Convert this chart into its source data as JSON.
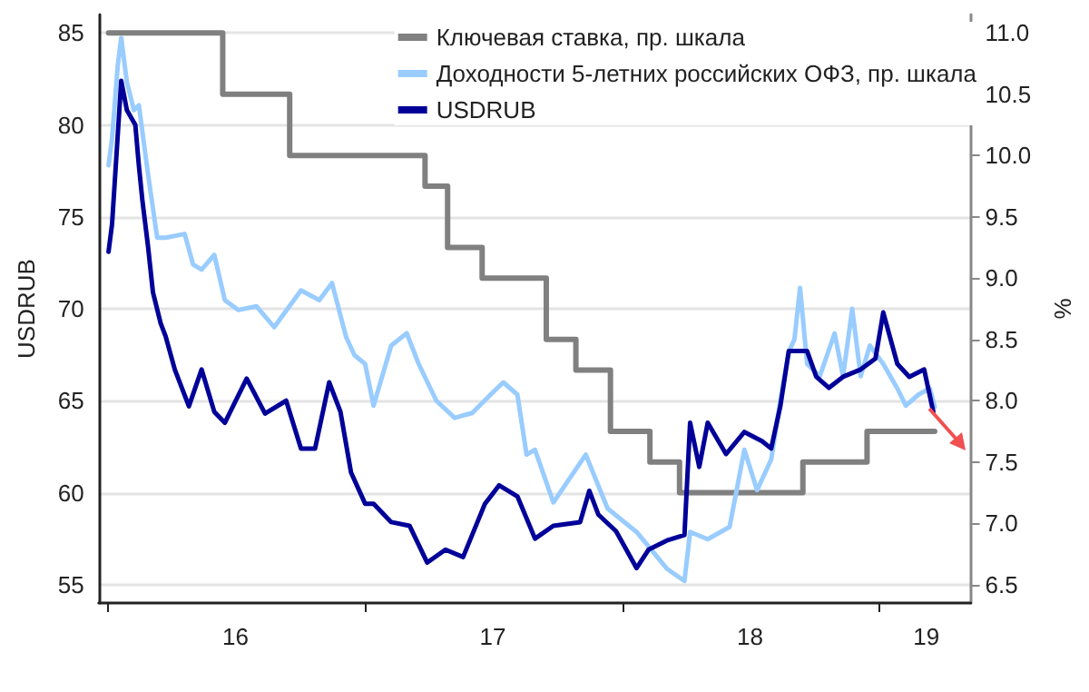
{
  "chart_data": {
    "type": "line",
    "ylabel": "USDRUB",
    "y2label": "%",
    "xlim": [
      "2015-12-20",
      "2019-05-10"
    ],
    "xticks": [
      {
        "value": "2016-01-01",
        "label": null
      },
      {
        "value": "2016-07-01",
        "label": "16"
      },
      {
        "value": "2017-01-01",
        "label": null
      },
      {
        "value": "2017-07-01",
        "label": "17"
      },
      {
        "value": "2018-01-01",
        "label": null
      },
      {
        "value": "2018-07-01",
        "label": "18"
      },
      {
        "value": "2019-01-01",
        "label": null
      },
      {
        "value": "2019-03-08",
        "label": "19"
      }
    ],
    "ylim": [
      54,
      86
    ],
    "yticks": [
      55,
      60,
      65,
      70,
      75,
      80,
      85
    ],
    "y2lim": [
      6.35,
      11.15
    ],
    "y2ticks": [
      {
        "value": 6.5,
        "label": "6.5"
      },
      {
        "value": 7,
        "label": "7.0"
      },
      {
        "value": 7.5,
        "label": "7.5"
      },
      {
        "value": 8,
        "label": "8.0"
      },
      {
        "value": 8.5,
        "label": "8.5"
      },
      {
        "value": 9,
        "label": "9.0"
      },
      {
        "value": 9.5,
        "label": "9.5"
      },
      {
        "value": 10,
        "label": "10.0"
      },
      {
        "value": 10.5,
        "label": "10.5"
      },
      {
        "value": 11,
        "label": "11.0"
      }
    ],
    "grid": "y",
    "legend": "top right",
    "marker": "none",
    "line_style": "solid",
    "series": [
      {
        "type": "step",
        "name": "Ключевая ставка, пр. шкала",
        "color": "#808080",
        "axis": "y2",
        "x": [
          "2016-01-03",
          "2016-06-13",
          "2016-09-16",
          "2017-03-27",
          "2017-04-28",
          "2017-06-16",
          "2017-09-15",
          "2017-10-27",
          "2017-12-15",
          "2018-02-09",
          "2018-03-23",
          "2018-09-14",
          "2018-12-14",
          "2019-03-20"
        ],
        "values": [
          11,
          10.5,
          10,
          9.75,
          9.25,
          9,
          8.5,
          8.25,
          7.75,
          7.5,
          7.25,
          7.5,
          7.75,
          7.75
        ]
      },
      {
        "name": "Доходности 5-летних российских ОФЗ, пр. шкала",
        "color": "#99ccff",
        "axis": "y2",
        "x": [
          "2016-01-03",
          "2016-01-08",
          "2016-01-16",
          "2016-01-21",
          "2016-01-29",
          "2016-02-08",
          "2016-02-15",
          "2016-02-28",
          "2016-03-12",
          "2016-03-24",
          "2016-04-20",
          "2016-05-02",
          "2016-05-14",
          "2016-06-01",
          "2016-06-16",
          "2016-07-05",
          "2016-07-31",
          "2016-08-25",
          "2016-10-02",
          "2016-10-28",
          "2016-11-15",
          "2016-12-05",
          "2016-12-17",
          "2017-01-01",
          "2017-01-13",
          "2017-02-07",
          "2017-03-01",
          "2017-03-18",
          "2017-04-12",
          "2017-05-08",
          "2017-06-02",
          "2017-06-28",
          "2017-07-16",
          "2017-08-05",
          "2017-08-18",
          "2017-08-30",
          "2017-09-25",
          "2017-11-10",
          "2017-12-11",
          "2018-01-21",
          "2018-03-05",
          "2018-03-30",
          "2018-04-07",
          "2018-05-02",
          "2018-06-02",
          "2018-06-23",
          "2018-07-11",
          "2018-07-31",
          "2018-08-13",
          "2018-08-25",
          "2018-09-02",
          "2018-09-10",
          "2018-09-20",
          "2018-10-08",
          "2018-10-29",
          "2018-11-10",
          "2018-11-23",
          "2018-12-05",
          "2018-12-18",
          "2019-01-06",
          "2019-01-26",
          "2019-02-07",
          "2019-02-25",
          "2019-03-13",
          "2019-03-20"
        ],
        "values": [
          9.92,
          10.14,
          10.73,
          10.96,
          10.6,
          10.37,
          10.41,
          9.85,
          9.33,
          9.33,
          9.36,
          9.11,
          9.07,
          9.19,
          8.82,
          8.74,
          8.77,
          8.6,
          8.9,
          8.82,
          8.96,
          8.52,
          8.37,
          8.3,
          7.96,
          8.45,
          8.55,
          8.3,
          8.0,
          7.86,
          7.9,
          8.05,
          8.15,
          8.05,
          7.56,
          7.6,
          7.17,
          7.56,
          7.12,
          6.93,
          6.63,
          6.53,
          6.93,
          6.87,
          6.97,
          7.6,
          7.27,
          7.52,
          8.0,
          8.4,
          8.5,
          8.92,
          8.3,
          8.2,
          8.55,
          8.2,
          8.75,
          8.2,
          8.45,
          8.3,
          8.1,
          7.96,
          8.05,
          8.1,
          7.95
        ]
      },
      {
        "name": "USDRUB",
        "color": "#000099",
        "axis": "y",
        "x": [
          "2016-01-03",
          "2016-01-08",
          "2016-01-21",
          "2016-01-29",
          "2016-02-10",
          "2016-02-15",
          "2016-02-20",
          "2016-02-28",
          "2016-03-06",
          "2016-03-17",
          "2016-03-24",
          "2016-04-06",
          "2016-04-26",
          "2016-05-14",
          "2016-06-01",
          "2016-06-16",
          "2016-07-17",
          "2016-08-12",
          "2016-09-11",
          "2016-10-02",
          "2016-10-22",
          "2016-11-11",
          "2016-11-27",
          "2016-12-12",
          "2017-01-01",
          "2017-01-13",
          "2017-02-07",
          "2017-03-05",
          "2017-03-30",
          "2017-04-25",
          "2017-05-20",
          "2017-06-20",
          "2017-07-10",
          "2017-08-05",
          "2017-08-30",
          "2017-09-25",
          "2017-11-02",
          "2017-11-15",
          "2017-11-28",
          "2017-12-23",
          "2018-01-21",
          "2018-02-07",
          "2018-03-05",
          "2018-03-30",
          "2018-04-07",
          "2018-04-20",
          "2018-05-02",
          "2018-05-28",
          "2018-06-23",
          "2018-07-18",
          "2018-07-31",
          "2018-08-13",
          "2018-08-25",
          "2018-09-20",
          "2018-10-03",
          "2018-10-21",
          "2018-11-10",
          "2018-12-05",
          "2018-12-26",
          "2019-01-06",
          "2019-01-26",
          "2019-02-12",
          "2019-03-05",
          "2019-03-18"
        ],
        "values": [
          73.1,
          74.6,
          82.4,
          80.8,
          80,
          77.8,
          75.9,
          73.4,
          70.9,
          69.2,
          68.5,
          66.7,
          64.7,
          66.7,
          64.4,
          63.8,
          66.2,
          64.3,
          65.0,
          62.4,
          62.4,
          66.0,
          64.4,
          61.1,
          59.4,
          59.4,
          58.4,
          58.2,
          56.2,
          56.9,
          56.5,
          59.4,
          60.4,
          59.8,
          57.5,
          58.2,
          58.4,
          60.1,
          58.8,
          57.9,
          55.9,
          56.9,
          57.4,
          57.7,
          63.8,
          61.4,
          63.8,
          62.1,
          63.3,
          62.8,
          62.4,
          64.7,
          67.7,
          67.7,
          66.3,
          65.7,
          66.3,
          66.7,
          67.3,
          69.8,
          67.0,
          66.3,
          66.7,
          64.4
        ]
      }
    ]
  }
}
